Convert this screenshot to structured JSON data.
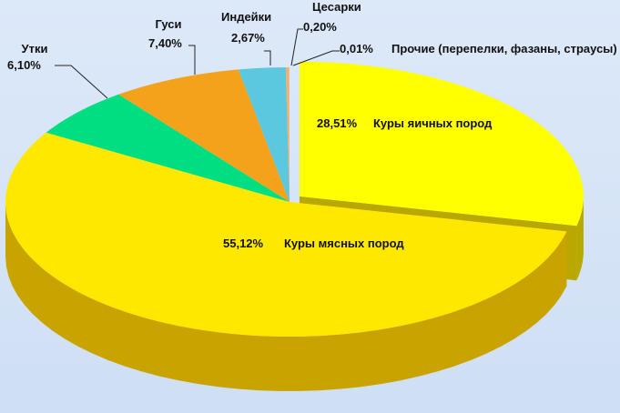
{
  "chart_data": {
    "type": "pie",
    "style": "3d-exploded",
    "slices": [
      {
        "label": "Куры яичных пород",
        "value": 28.51,
        "value_label": "28,51%",
        "color": "#FFFF00",
        "side": "#B8A800",
        "explode": true
      },
      {
        "label": "Куры мясных пород",
        "value": 55.12,
        "value_label": "55,12%",
        "color": "#FFE800",
        "side": "#C9A400"
      },
      {
        "label": "Утки",
        "value": 6.1,
        "value_label": "6,10%",
        "color": "#00DE82",
        "side": "#00803E"
      },
      {
        "label": "Гуси",
        "value": 7.4,
        "value_label": "7,40%",
        "color": "#F4A21C",
        "side": "#A0600A"
      },
      {
        "label": "Индейки",
        "value": 2.67,
        "value_label": "2,67%",
        "color": "#5CC8E0",
        "side": "#2E7F92"
      },
      {
        "label": "Цесарки",
        "value": 0.2,
        "value_label": "0,20%",
        "color": "#F0B070",
        "side": "#A07040"
      },
      {
        "label": "Прочие (перепелки, фазаны, страусы)",
        "value": 0.01,
        "value_label": "0,01%",
        "color": "#F5D8A8",
        "side": "#A08860"
      }
    ]
  }
}
